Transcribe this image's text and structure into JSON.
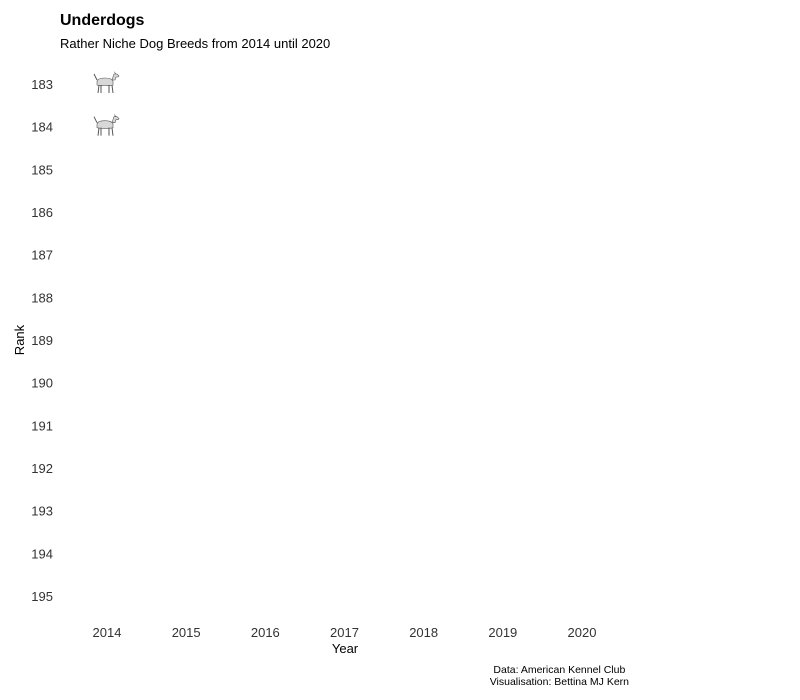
{
  "chart_data": {
    "type": "scatter",
    "title": "Underdogs",
    "subtitle": "Rather Niche Dog Breeds from 2014 until 2020",
    "xlabel": "Year",
    "ylabel": "Rank",
    "x_categories": [
      "2014",
      "2015",
      "2016",
      "2017",
      "2018",
      "2019",
      "2020"
    ],
    "y_ticks": [
      183,
      184,
      185,
      186,
      187,
      188,
      189,
      190,
      191,
      192,
      193,
      194,
      195
    ],
    "ylim": [
      183,
      195
    ],
    "y_reversed": true,
    "grid": false,
    "points": [
      {
        "x": "2014",
        "y": 183,
        "icon": "foxhound-dog-icon"
      },
      {
        "x": "2014",
        "y": 184,
        "icon": "harrier-dog-icon"
      }
    ]
  },
  "caption": {
    "source": "Data: American Kennel Club",
    "author": "Visualisation: Bettina MJ Kern"
  }
}
